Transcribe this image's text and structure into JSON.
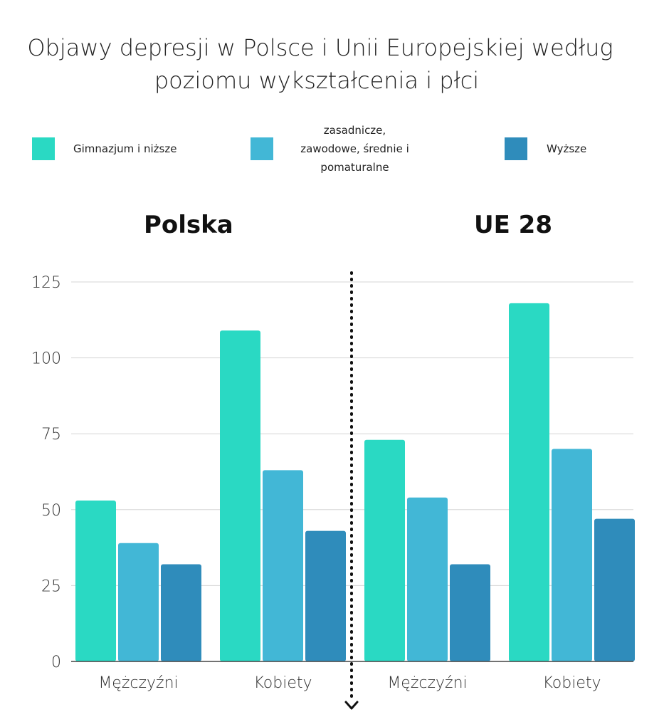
{
  "title": {
    "line1": "Objawy depresji w Polsce i Unii Europejskiej według",
    "line2": "poziomu wykształcenia i płci"
  },
  "legend": [
    {
      "label_lines": [
        "Gimnazjum i niższe"
      ],
      "color": "#2ad9c3"
    },
    {
      "label_lines": [
        "zasadnicze,",
        "zawodowe, średnie i",
        "pomaturalne"
      ],
      "color": "#42b7d6"
    },
    {
      "label_lines": [
        "Wyższe"
      ],
      "color": "#2f8cbb"
    }
  ],
  "colors": {
    "grid": "#d6d6d6",
    "axis": "#444444",
    "separator": "#111111"
  },
  "chart_data": [
    {
      "type": "bar",
      "title": "Polska",
      "categories": [
        "Mężczyźni",
        "Kobiety"
      ],
      "series": [
        {
          "name": "Gimnazjum i niższe",
          "values": [
            53,
            109
          ]
        },
        {
          "name": "zasadnicze, zawodowe, średnie i pomaturalne",
          "values": [
            39,
            63
          ]
        },
        {
          "name": "Wyższe",
          "values": [
            32,
            43
          ]
        }
      ],
      "ylim": [
        0,
        125
      ],
      "yticks": [
        0,
        25,
        50,
        75,
        100,
        125
      ],
      "grid": true,
      "legend": "top"
    },
    {
      "type": "bar",
      "title": "UE 28",
      "categories": [
        "Mężczyźni",
        "Kobiety"
      ],
      "series": [
        {
          "name": "Gimnazjum i niższe",
          "values": [
            73,
            118
          ]
        },
        {
          "name": "zasadnicze, zawodowe, średnie i pomaturalne",
          "values": [
            54,
            70
          ]
        },
        {
          "name": "Wyższe",
          "values": [
            32,
            47
          ]
        }
      ],
      "ylim": [
        0,
        125
      ],
      "yticks": [
        0,
        25,
        50,
        75,
        100,
        125
      ],
      "grid": true,
      "legend": "top"
    }
  ]
}
